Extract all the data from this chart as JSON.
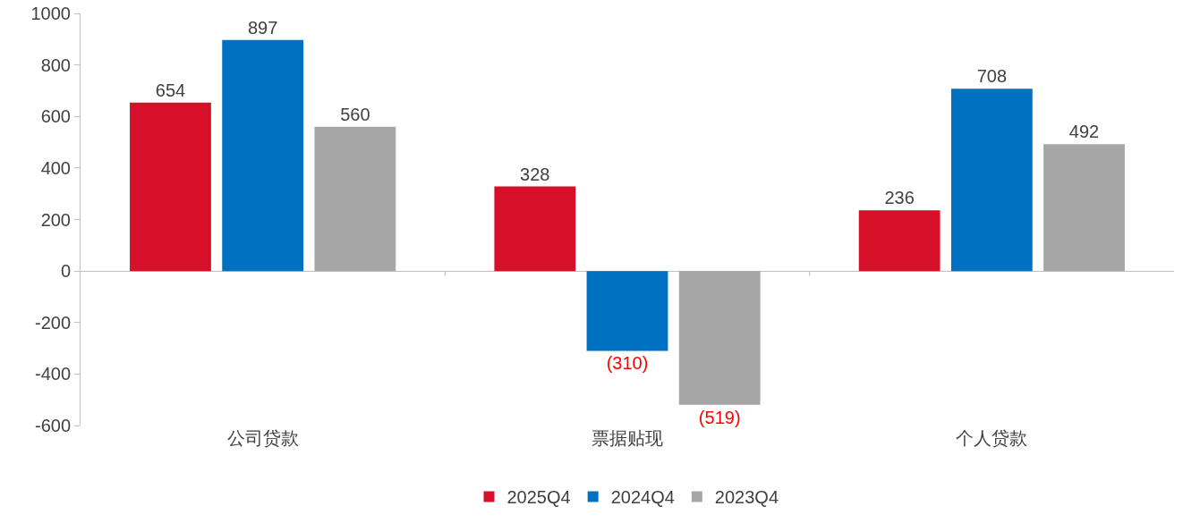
{
  "chart_data": {
    "type": "bar",
    "categories": [
      "公司贷款",
      "票据贴现",
      "个人贷款"
    ],
    "series": [
      {
        "name": "2025Q4",
        "color": "#d7102a",
        "values": [
          654,
          328,
          236
        ],
        "value_labels": [
          "654",
          "328",
          "236"
        ]
      },
      {
        "name": "2024Q4",
        "color": "#0070c0",
        "values": [
          897,
          -310,
          708
        ],
        "value_labels": [
          "897",
          "(310)",
          "708"
        ]
      },
      {
        "name": "2023Q4",
        "color": "#a6a6a6",
        "values": [
          560,
          -519,
          492
        ],
        "value_labels": [
          "560",
          "(519)",
          "492"
        ]
      }
    ],
    "ylim": [
      -600,
      1000
    ],
    "yticks": [
      -600,
      -400,
      -200,
      0,
      200,
      400,
      600,
      800,
      1000
    ],
    "legend": "bottom"
  }
}
